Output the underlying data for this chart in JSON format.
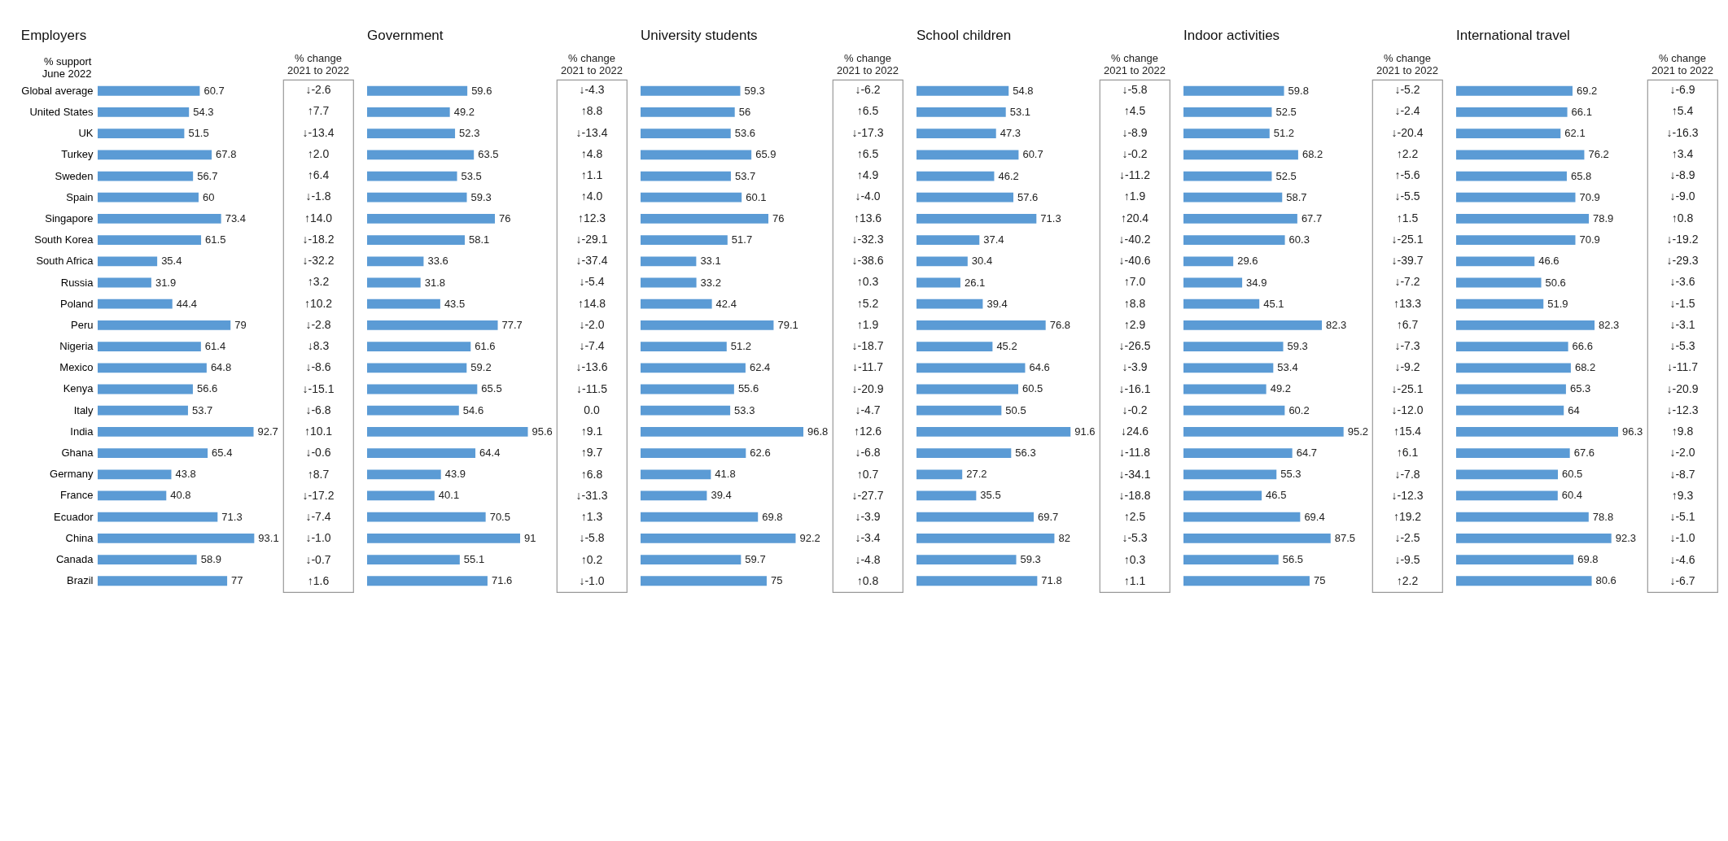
{
  "chart_data": [
    {
      "type": "bar",
      "orientation": "horizontal",
      "title": "Employers",
      "ylabel": "% support\nJune 2022",
      "tick_labels": "y",
      "data_labels": true,
      "color": "#5b9bd5",
      "categories": [
        "Global average",
        "United States",
        "UK",
        "Turkey",
        "Sweden",
        "Spain",
        "Singapore",
        "South Korea",
        "South Africa",
        "Russia",
        "Poland",
        "Peru",
        "Nigeria",
        "Mexico",
        "Kenya",
        "Italy",
        "India",
        "Ghana",
        "Germany",
        "France",
        "Ecuador",
        "China",
        "Canada",
        "Brazil"
      ],
      "values": [
        60.7,
        54.3,
        51.5,
        67.8,
        56.7,
        60,
        73.4,
        61.5,
        35.4,
        31.9,
        44.4,
        79,
        61.4,
        64.8,
        56.6,
        53.7,
        92.7,
        65.4,
        43.8,
        40.8,
        71.3,
        93.1,
        58.9,
        77
      ],
      "annotations": [
        "% change\n2021 to 2022",
        "↓-2.6",
        "↑7.7",
        "↓-13.4",
        "↑2.0",
        "↑6.4",
        "↓-1.8",
        "↑14.0",
        "↓-18.2",
        "↓-32.2",
        "↑3.2",
        "↑10.2",
        "↓-2.8",
        "↓8.3",
        "↓-8.6",
        "↓-15.1",
        "↓-6.8",
        "↑10.1",
        "↓-0.6",
        "↑8.7",
        "↓-17.2",
        "↓-7.4",
        "↓-1.0",
        "↓-0.7",
        "↑1.6"
      ]
    },
    {
      "type": "bar",
      "orientation": "horizontal",
      "title": "Government",
      "tick_labels": false,
      "data_labels": true,
      "color": "#5b9bd5",
      "categories": [
        null,
        null,
        null,
        null,
        null,
        null,
        null,
        null,
        null,
        null,
        null,
        null,
        null,
        null,
        null,
        null,
        null,
        null,
        null,
        null,
        null,
        null,
        null,
        null
      ],
      "values": [
        59.6,
        49.2,
        52.3,
        63.5,
        53.5,
        59.3,
        76,
        58.1,
        33.6,
        31.8,
        43.5,
        77.7,
        61.6,
        59.2,
        65.5,
        54.6,
        95.6,
        64.4,
        43.9,
        40.1,
        70.5,
        91,
        55.1,
        71.6
      ],
      "annotations": [
        "% change\n2021 to 2022",
        "↓-4.3",
        "↑8.8",
        "↓-13.4",
        "↑4.8",
        "↑1.1",
        "↑4.0",
        "↑12.3",
        "↓-29.1",
        "↓-37.4",
        "↓-5.4",
        "↑14.8",
        "↓-2.0",
        "↓-7.4",
        "↓-13.6",
        "↓-11.5",
        "0.0",
        "↑9.1",
        "↑9.7",
        "↑6.8",
        "↓-31.3",
        "↑1.3",
        "↓-5.8",
        "↑0.2",
        "↓-1.0"
      ]
    },
    {
      "type": "bar",
      "orientation": "horizontal",
      "title": "University students",
      "tick_labels": false,
      "data_labels": true,
      "color": "#5b9bd5",
      "categories": [
        null,
        null,
        null,
        null,
        null,
        null,
        null,
        null,
        null,
        null,
        null,
        null,
        null,
        null,
        null,
        null,
        null,
        null,
        null,
        null,
        null,
        null,
        null,
        null
      ],
      "values": [
        59.3,
        56,
        53.6,
        65.9,
        53.7,
        60.1,
        76,
        51.7,
        33.1,
        33.2,
        42.4,
        79.1,
        51.2,
        62.4,
        55.6,
        53.3,
        96.8,
        62.6,
        41.8,
        39.4,
        69.8,
        92.2,
        59.7,
        75
      ],
      "annotations": [
        "% change\n2021 to 2022",
        "↓-6.2",
        "↑6.5",
        "↓-17.3",
        "↑6.5",
        "↑4.9",
        "↓-4.0",
        "↑13.6",
        "↓-32.3",
        "↓-38.6",
        "↑0.3",
        "↑5.2",
        "↑1.9",
        "↓-18.7",
        "↓-11.7",
        "↓-20.9",
        "↓-4.7",
        "↑12.6",
        "↓-6.8",
        "↑0.7",
        "↓-27.7",
        "↓-3.9",
        "↓-3.4",
        "↓-4.8",
        "↑0.8"
      ]
    },
    {
      "type": "bar",
      "orientation": "horizontal",
      "title": "School children",
      "tick_labels": false,
      "data_labels": true,
      "color": "#5b9bd5",
      "categories": [
        null,
        null,
        null,
        null,
        null,
        null,
        null,
        null,
        null,
        null,
        null,
        null,
        null,
        null,
        null,
        null,
        null,
        null,
        null,
        null,
        null,
        null,
        null,
        null
      ],
      "values": [
        54.8,
        53.1,
        47.3,
        60.7,
        46.2,
        57.6,
        71.3,
        37.4,
        30.4,
        26.1,
        39.4,
        76.8,
        45.2,
        64.6,
        60.5,
        50.5,
        91.6,
        56.3,
        27.2,
        35.5,
        69.7,
        82,
        59.3,
        71.8
      ],
      "annotations": [
        "% change\n2021 to 2022",
        "↓-5.8",
        "↑4.5",
        "↓-8.9",
        "↓-0.2",
        "↓-11.2",
        "↑1.9",
        "↑20.4",
        "↓-40.2",
        "↓-40.6",
        "↑7.0",
        "↑8.8",
        "↑2.9",
        "↓-26.5",
        "↓-3.9",
        "↓-16.1",
        "↓-0.2",
        "↓24.6",
        "↓-11.8",
        "↓-34.1",
        "↓-18.8",
        "↑2.5",
        "↓-5.3",
        "↑0.3",
        "↑1.1"
      ]
    },
    {
      "type": "bar",
      "orientation": "horizontal",
      "title": "Indoor activities",
      "tick_labels": false,
      "data_labels": true,
      "color": "#5b9bd5",
      "categories": [
        null,
        null,
        null,
        null,
        null,
        null,
        null,
        null,
        null,
        null,
        null,
        null,
        null,
        null,
        null,
        null,
        null,
        null,
        null,
        null,
        null,
        null,
        null,
        null
      ],
      "values": [
        59.8,
        52.5,
        51.2,
        68.2,
        52.5,
        58.7,
        67.7,
        60.3,
        29.6,
        34.9,
        45.1,
        82.3,
        59.3,
        53.4,
        49.2,
        60.2,
        95.2,
        64.7,
        55.3,
        46.5,
        69.4,
        87.5,
        56.5,
        75
      ],
      "annotations": [
        "% change\n2021 to 2022",
        "↓-5.2",
        "↓-2.4",
        "↓-20.4",
        "↑2.2",
        "↑-5.6",
        "↓-5.5",
        "↑1.5",
        "↓-25.1",
        "↓-39.7",
        "↓-7.2",
        "↑13.3",
        "↑6.7",
        "↓-7.3",
        "↓-9.2",
        "↓-25.1",
        "↓-12.0",
        "↑15.4",
        "↑6.1",
        "↓-7.8",
        "↓-12.3",
        "↑19.2",
        "↓-2.5",
        "↓-9.5",
        "↑2.2"
      ]
    },
    {
      "type": "bar",
      "orientation": "horizontal",
      "title": "International travel",
      "tick_labels": false,
      "data_labels": true,
      "color": "#5b9bd5",
      "categories": [
        null,
        null,
        null,
        null,
        null,
        null,
        null,
        null,
        null,
        null,
        null,
        null,
        null,
        null,
        null,
        null,
        null,
        null,
        null,
        null,
        null,
        null,
        null,
        null
      ],
      "values": [
        69.2,
        66.1,
        62.1,
        76.2,
        65.8,
        70.9,
        78.9,
        70.9,
        46.6,
        50.6,
        51.9,
        82.3,
        66.6,
        68.2,
        65.3,
        64,
        96.3,
        67.6,
        60.5,
        60.4,
        78.8,
        92.3,
        69.8,
        80.6
      ],
      "annotations": [
        "% change\n2021 to 2022",
        "↓-6.9",
        "↑5.4",
        "↓-16.3",
        "↑3.4",
        "↓-8.9",
        "↓-9.0",
        "↑0.8",
        "↓-19.2",
        "↓-29.3",
        "↓-3.6",
        "↓-1.5",
        "↓-3.1",
        "↓-5.3",
        "↓-11.7",
        "↓-20.9",
        "↓-12.3",
        "↑9.8",
        "↓-2.0",
        "↓-8.7",
        "↑9.3",
        "↓-5.1",
        "↓-1.0",
        "↓-4.6",
        "↓-6.7"
      ]
    }
  ]
}
